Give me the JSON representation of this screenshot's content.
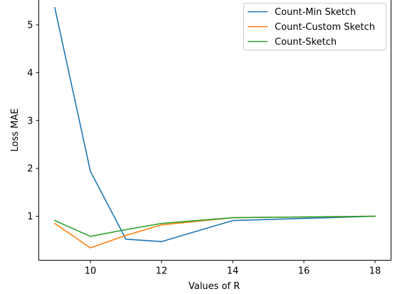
{
  "chart_data": {
    "type": "line",
    "xlabel": "Values of R",
    "ylabel": "Loss MAE",
    "xlim": [
      8.55,
      18.45
    ],
    "ylim": [
      0.08,
      5.55
    ],
    "xticks": [
      10,
      12,
      14,
      16,
      18
    ],
    "yticks": [
      1,
      2,
      3,
      4,
      5
    ],
    "grid": false,
    "legend_position": "top-right",
    "series": [
      {
        "name": "Count-Min Sketch",
        "color": "#1f77b4",
        "x": [
          9,
          10,
          11,
          12,
          14,
          18
        ],
        "y": [
          5.36,
          1.94,
          0.52,
          0.47,
          0.91,
          1.0
        ]
      },
      {
        "name": "Count-Custom Sketch",
        "color": "#ff7f0e",
        "x": [
          9,
          10,
          11,
          12,
          14,
          18
        ],
        "y": [
          0.85,
          0.34,
          0.6,
          0.82,
          0.97,
          1.0
        ]
      },
      {
        "name": "Count-Sketch",
        "color": "#2ca02c",
        "x": [
          9,
          10,
          11,
          12,
          14,
          18
        ],
        "y": [
          0.91,
          0.58,
          0.72,
          0.85,
          0.97,
          1.0
        ]
      }
    ]
  }
}
